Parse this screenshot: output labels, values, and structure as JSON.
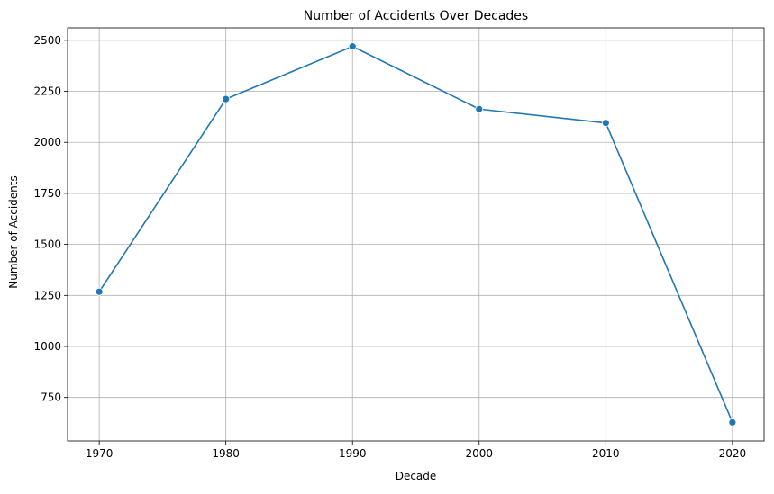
{
  "chart_data": {
    "type": "line",
    "title": "Number of Accidents Over Decades",
    "xlabel": "Decade",
    "ylabel": "Number of Accidents",
    "x": [
      1970,
      1980,
      1990,
      2000,
      2010,
      2020
    ],
    "series": [
      {
        "values": [
          1268,
          2212,
          2470,
          2163,
          2095,
          628
        ],
        "color": "#1f77b4",
        "marker": "circle"
      }
    ],
    "xticks": [
      "1970",
      "1980",
      "1990",
      "2000",
      "2010",
      "2020"
    ],
    "yticks": [
      "750",
      "1000",
      "1250",
      "1500",
      "1750",
      "2000",
      "2250",
      "2500"
    ],
    "xlim": [
      1967.5,
      2022.5
    ],
    "ylim": [
      537,
      2561
    ],
    "grid": true,
    "legend": "none"
  }
}
